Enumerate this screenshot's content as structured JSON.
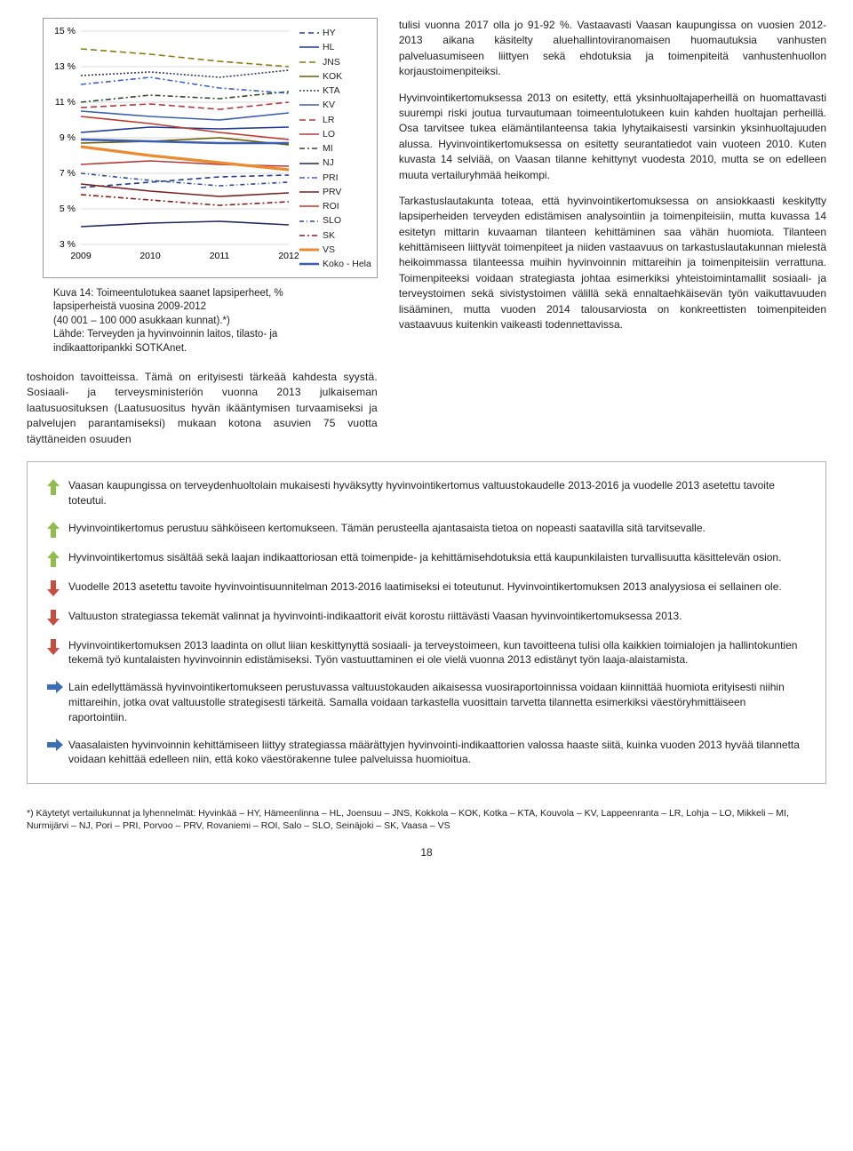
{
  "chart": {
    "type": "line",
    "x_categories": [
      "2009",
      "2010",
      "2011",
      "2012"
    ],
    "y_ticks": [
      "3 %",
      "5 %",
      "7 %",
      "9 %",
      "11 %",
      "13 %",
      "15 %"
    ],
    "y_domain": [
      3,
      15
    ],
    "grid_color": "#d9d9d9",
    "axis_color": "#808080",
    "label_fontsize": 10.5,
    "series": [
      {
        "label": "HY",
        "color": "#1f3a93",
        "dash": [
          6,
          4
        ],
        "width": 1.6,
        "values": [
          6.2,
          6.5,
          6.8,
          6.9
        ]
      },
      {
        "label": "HL",
        "color": "#1f3a93",
        "dash": [],
        "width": 1.6,
        "values": [
          9.3,
          9.6,
          9.5,
          9.6
        ]
      },
      {
        "label": "JNS",
        "color": "#8a7d0a",
        "dash": [
          7,
          4
        ],
        "width": 1.6,
        "values": [
          14.0,
          13.7,
          13.3,
          13.0
        ]
      },
      {
        "label": "KOK",
        "color": "#6b5b00",
        "dash": [],
        "width": 1.6,
        "values": [
          8.7,
          8.8,
          9.0,
          8.6
        ]
      },
      {
        "label": "KTA",
        "color": "#2e3a59",
        "dash": [
          2,
          2
        ],
        "width": 1.6,
        "values": [
          12.5,
          12.7,
          12.4,
          12.8
        ]
      },
      {
        "label": "KV",
        "color": "#3a5fb0",
        "dash": [],
        "width": 1.6,
        "values": [
          10.5,
          10.2,
          10.0,
          10.4
        ]
      },
      {
        "label": "LR",
        "color": "#b33939",
        "dash": [
          7,
          4
        ],
        "width": 1.6,
        "values": [
          10.7,
          10.9,
          10.6,
          11.0
        ]
      },
      {
        "label": "LO",
        "color": "#b33939",
        "dash": [],
        "width": 1.6,
        "values": [
          7.5,
          7.7,
          7.5,
          7.4
        ]
      },
      {
        "label": "MI",
        "color": "#2d4a2d",
        "dash": [
          6,
          3,
          2,
          3
        ],
        "width": 1.6,
        "values": [
          11.0,
          11.4,
          11.2,
          11.6
        ]
      },
      {
        "label": "NJ",
        "color": "#1f2a5a",
        "dash": [],
        "width": 1.6,
        "values": [
          4.0,
          4.2,
          4.3,
          4.1
        ]
      },
      {
        "label": "PRI",
        "color": "#3a5fcf",
        "dash": [
          6,
          3,
          2,
          3
        ],
        "width": 1.6,
        "values": [
          12.0,
          12.4,
          11.8,
          11.5
        ]
      },
      {
        "label": "PRV",
        "color": "#7a1f1f",
        "dash": [],
        "width": 1.6,
        "values": [
          6.4,
          6.0,
          5.7,
          5.9
        ]
      },
      {
        "label": "ROI",
        "color": "#c0392b",
        "dash": [],
        "width": 1.6,
        "values": [
          10.2,
          9.8,
          9.3,
          8.9
        ]
      },
      {
        "label": "SLO",
        "color": "#2e4a8f",
        "dash": [
          5,
          3,
          1,
          3
        ],
        "width": 1.6,
        "values": [
          7.0,
          6.6,
          6.3,
          6.5
        ]
      },
      {
        "label": "SK",
        "color": "#8a1c1c",
        "dash": [
          6,
          3,
          2,
          3
        ],
        "width": 1.6,
        "values": [
          5.8,
          5.5,
          5.2,
          5.4
        ]
      },
      {
        "label": "VS",
        "color": "#e98b2e",
        "dash": [],
        "width": 3.2,
        "values": [
          8.5,
          8.0,
          7.6,
          7.2
        ]
      },
      {
        "label": "Koko - Hela",
        "color": "#3a5fb0",
        "dash": [],
        "width": 2.6,
        "values": [
          8.9,
          8.8,
          8.7,
          8.7
        ]
      }
    ]
  },
  "caption": {
    "line1": "Kuva 14: Toimeentulotukea saanet lapsiperheet, %",
    "line2": "lapsiperheistä vuosina 2009-2012",
    "line3": "(40 001 – 100 000 asukkaan kunnat).*)",
    "line4": "Lähde: Terveyden ja hyvinvoinnin laitos, tilasto- ja",
    "line5": "indikaattoripankki SOTKAnet."
  },
  "left_body": {
    "p1": "toshoidon tavoitteissa. Tämä on erityisesti tärkeää kahdesta syystä. Sosiaali- ja terveysministeriön vuonna 2013 julkaiseman laatusuosituksen (Laatusuositus hyvän ikääntymisen turvaamiseksi ja palvelujen parantamiseksi) mukaan kotona asuvien 75 vuotta täyttäneiden osuuden"
  },
  "right_body": {
    "p1": "tulisi vuonna 2017 olla jo 91-92 %. Vastaavasti Vaasan kaupungissa on vuosien 2012-2013 aikana käsitelty aluehallintoviranomaisen huomautuksia vanhusten palveluasumiseen liittyen sekä ehdotuksia ja toimenpiteitä vanhustenhuollon korjaustoimenpiteiksi.",
    "p2": "Hyvinvointikertomuksessa 2013 on esitetty, että yksinhuoltajaperheillä on huomattavasti suurempi riski joutua turvautumaan toimeentulotukeen kuin kahden huoltajan perheillä. Osa tarvitsee tukea elämäntilanteensa takia lyhytaikaisesti varsinkin yksinhuoltajuuden alussa. Hyvinvointikertomuksessa on esitetty seurantatiedot vain vuoteen 2010. Kuten kuvasta 14 selviää, on Vaasan tilanne kehittynyt vuodesta 2010, mutta se on edelleen muuta vertailuryhmää heikompi.",
    "p3": "Tarkastuslautakunta toteaa, että hyvinvointikertomuksessa on ansiokkaasti keskitytty lapsiperheiden terveyden edistämisen analysointiin ja toimenpiteisiin, mutta kuvassa 14 esitetyn mittarin kuvaaman tilanteen kehittäminen saa vähän huomiota. Tilanteen kehittämiseen liittyvät toimenpiteet ja niiden vastaavuus on tarkastuslautakunnan mielestä heikoimmassa tilanteessa muihin hyvinvoinnin mittareihin ja toimenpiteisiin verrattuna. Toimenpiteeksi voidaan strategiasta johtaa esimerkiksi yhteistoimintamallit sosiaali- ja terveystoimen sekä sivistystoimen välillä sekä ennaltaehkäisevän työn vaikuttavuuden lisääminen, mutta vuoden 2014 talousarviosta on konkreettisten toimenpiteiden vastaavuus kuitenkin vaikeasti todennettavissa."
  },
  "arrows": {
    "up_color": "#8fbf4a",
    "down_color": "#c94d3f",
    "right_color": "#3a6fb7"
  },
  "findings": [
    {
      "dir": "up",
      "text": "Vaasan kaupungissa on terveydenhuoltolain mukaisesti hyväksytty hyvinvointikertomus valtuustokaudelle 2013-2016 ja vuodelle 2013 asetettu tavoite toteutui."
    },
    {
      "dir": "up",
      "text": "Hyvinvointikertomus perustuu sähköiseen kertomukseen. Tämän perusteella ajantasaista tietoa on nopeasti saatavilla sitä tarvitsevalle."
    },
    {
      "dir": "up",
      "text": "Hyvinvointikertomus sisältää sekä laajan indikaattoriosan että toimenpide- ja kehittämisehdotuksia että kaupunkilaisten turvallisuutta käsittelevän osion."
    },
    {
      "dir": "down",
      "text": "Vuodelle 2013 asetettu tavoite hyvinvointisuunnitelman 2013-2016 laatimiseksi ei toteutunut. Hyvinvointikertomuksen 2013 analyysiosa ei sellainen ole."
    },
    {
      "dir": "down",
      "text": "Valtuuston strategiassa tekemät valinnat ja hyvinvointi-indikaattorit eivät korostu riittävästi Vaasan hyvinvointikertomuksessa 2013."
    },
    {
      "dir": "down",
      "text": "Hyvinvointikertomuksen 2013 laadinta on ollut liian keskittynyttä sosiaali- ja terveystoimeen, kun tavoitteena tulisi olla kaikkien toimialojen ja hallintokuntien tekemä työ kuntalaisten hyvinvoinnin edistämiseksi. Työn vastuuttaminen ei ole vielä vuonna 2013 edistänyt työn laaja-alaistamista."
    },
    {
      "dir": "right",
      "text": "Lain edellyttämässä hyvinvointikertomukseen perustuvassa valtuustokauden aikaisessa vuosiraportoinnissa voidaan kiinnittää huomiota erityisesti niihin mittareihin, jotka ovat valtuustolle strategisesti tärkeitä. Samalla voidaan tarkastella vuosittain tarvetta tilannetta esimerkiksi väestöryhmittäiseen raportointiin."
    },
    {
      "dir": "right",
      "text": "Vaasalaisten hyvinvoinnin kehittämiseen liittyy strategiassa määrättyjen hyvinvointi-indikaattorien valossa haaste siitä, kuinka vuoden 2013 hyvää tilannetta voidaan kehittää edelleen niin, että koko väestörakenne tulee palveluissa huomioitua."
    }
  ],
  "footnote": "*) Käytetyt vertailukunnat ja lyhennelmät: Hyvinkää – HY, Hämeenlinna – HL, Joensuu – JNS, Kokkola – KOK, Kotka – KTA,  Kouvola – KV, Lappeenranta – LR, Lohja – LO, Mikkeli – MI, Nurmijärvi – NJ, Pori – PRI, Porvoo – PRV, Rovaniemi – ROI, Salo – SLO, Seinäjoki – SK, Vaasa – VS",
  "page_number": "18"
}
